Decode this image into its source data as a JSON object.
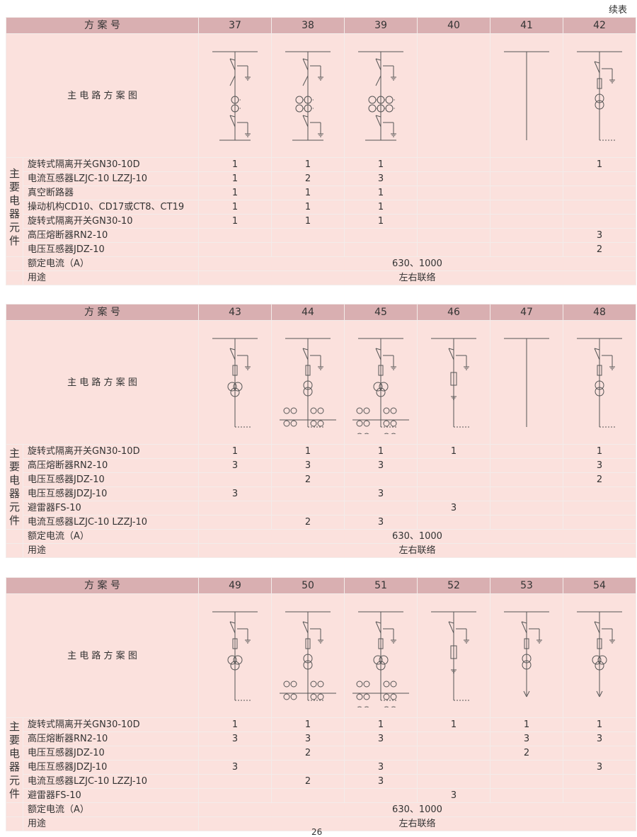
{
  "continued_label": "续表",
  "tables": [
    {
      "scheme_label": "方 案 号",
      "schemes": [
        "37",
        "38",
        "39",
        "40",
        "41",
        "42"
      ],
      "diagram_label": "主 电 路 方 案 图",
      "diagrams": [
        "cb1",
        "cb2",
        "cb3",
        "empty",
        "bar",
        "fusept"
      ],
      "group_label": "主要电器元件",
      "rows": [
        {
          "name": "旋转式隔离开关GN30-10D",
          "values": [
            "1",
            "1",
            "1",
            "",
            "",
            "1"
          ]
        },
        {
          "name": "电流互感器LZJC-10 LZZJ-10",
          "values": [
            "1",
            "2",
            "3",
            "",
            "",
            ""
          ]
        },
        {
          "name": "真空断路器",
          "values": [
            "1",
            "1",
            "1",
            "",
            "",
            ""
          ]
        },
        {
          "name": "操动机构CD10、CD17或CT8、CT19",
          "values": [
            "1",
            "1",
            "1",
            "",
            "",
            ""
          ]
        },
        {
          "name": "旋转式隔离开关GN30-10",
          "values": [
            "1",
            "1",
            "1",
            "",
            "",
            ""
          ]
        },
        {
          "name": "高压熔断器RN2-10",
          "values": [
            "",
            "",
            "",
            "",
            "",
            "3"
          ]
        },
        {
          "name": "电压互感器JDZ-10",
          "values": [
            "",
            "",
            "",
            "",
            "",
            "2"
          ]
        }
      ],
      "rated_label": "额定电流（A）",
      "rated_value": "630、1000",
      "usage_label": "用途",
      "usage_value": "左右联络"
    },
    {
      "scheme_label": "方 案 号",
      "schemes": [
        "43",
        "44",
        "45",
        "46",
        "47",
        "48"
      ],
      "diagram_label": "主 电 路 方 案 图",
      "diagrams": [
        "pt3",
        "pt2ct2",
        "pt3ct3",
        "arr",
        "bar2",
        "pt2"
      ],
      "group_label": "主要电器元件",
      "rows": [
        {
          "name": "旋转式隔离开关GN30-10D",
          "values": [
            "1",
            "1",
            "1",
            "1",
            "",
            "1"
          ]
        },
        {
          "name": "高压熔断器RN2-10",
          "values": [
            "3",
            "3",
            "3",
            "",
            "",
            "3"
          ]
        },
        {
          "name": "电压互感器JDZ-10",
          "values": [
            "",
            "2",
            "",
            "",
            "",
            "2"
          ]
        },
        {
          "name": "电压互感器JDZJ-10",
          "values": [
            "3",
            "",
            "3",
            "",
            "",
            ""
          ]
        },
        {
          "name": "避雷器FS-10",
          "values": [
            "",
            "",
            "",
            "3",
            "",
            ""
          ]
        },
        {
          "name": "电流互感器LZJC-10 LZZJ-10",
          "values": [
            "",
            "2",
            "3",
            "",
            "",
            ""
          ]
        }
      ],
      "rated_label": "额定电流（A）",
      "rated_value": "630、1000",
      "usage_label": "用途",
      "usage_value": "左右联络"
    },
    {
      "scheme_label": "方 案 号",
      "schemes": [
        "49",
        "50",
        "51",
        "52",
        "53",
        "54"
      ],
      "diagram_label": "主 电 路 方 案 图",
      "diagrams": [
        "pt3",
        "pt2ct2",
        "pt3ct3",
        "arr",
        "pt2cable",
        "pt3cable"
      ],
      "group_label": "主要电器元件",
      "rows": [
        {
          "name": "旋转式隔离开关GN30-10D",
          "values": [
            "1",
            "1",
            "1",
            "1",
            "1",
            "1"
          ]
        },
        {
          "name": "高压熔断器RN2-10",
          "values": [
            "3",
            "3",
            "3",
            "",
            "3",
            "3"
          ]
        },
        {
          "name": "电压互感器JDZ-10",
          "values": [
            "",
            "2",
            "",
            "",
            "2",
            ""
          ]
        },
        {
          "name": "电压互感器JDZJ-10",
          "values": [
            "3",
            "",
            "3",
            "",
            "",
            "3"
          ]
        },
        {
          "name": "电流互感器LZJC-10 LZZJ-10",
          "values": [
            "",
            "2",
            "3",
            "",
            "",
            ""
          ]
        },
        {
          "name": "避雷器FS-10",
          "values": [
            "",
            "",
            "",
            "3",
            "",
            ""
          ]
        }
      ],
      "rated_label": "额定电流（A）",
      "rated_value": "630、1000",
      "usage_label": "用途",
      "usage_value": "左右联络"
    }
  ],
  "page_number": "26",
  "colors": {
    "header": "#d9afb1",
    "body": "#fbe1dd"
  }
}
